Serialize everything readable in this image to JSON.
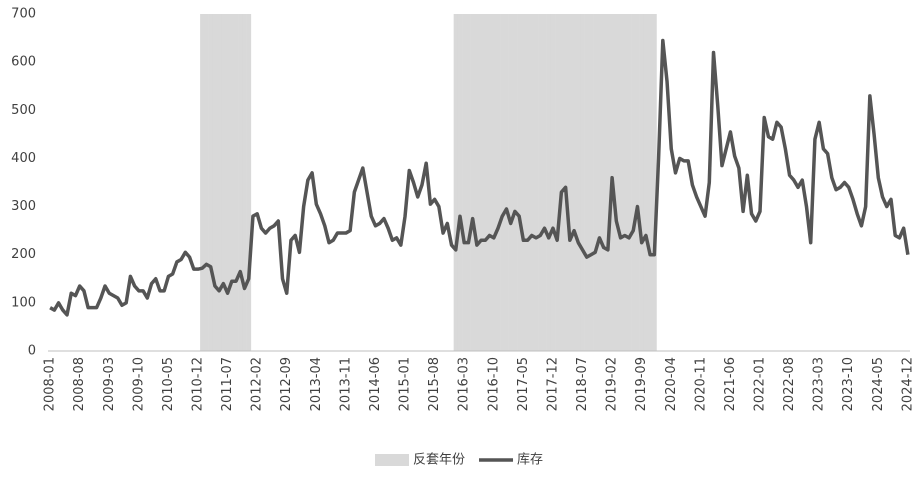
{
  "chart_data": {
    "type": "line",
    "categories": [
      "2008-01",
      null,
      null,
      null,
      null,
      null,
      null,
      "2008-08",
      null,
      null,
      null,
      null,
      null,
      null,
      "2009-03",
      null,
      null,
      null,
      null,
      null,
      null,
      "2009-10",
      null,
      null,
      null,
      null,
      null,
      null,
      "2010-05",
      null,
      null,
      null,
      null,
      null,
      null,
      "2010-12",
      null,
      null,
      null,
      null,
      null,
      null,
      "2011-07",
      null,
      null,
      null,
      null,
      null,
      null,
      "2012-02",
      null,
      null,
      null,
      null,
      null,
      null,
      "2012-09",
      null,
      null,
      null,
      null,
      null,
      null,
      "2013-04",
      null,
      null,
      null,
      null,
      null,
      null,
      "2013-11",
      null,
      null,
      null,
      null,
      null,
      null,
      "2014-06",
      null,
      null,
      null,
      null,
      null,
      null,
      "2015-01",
      null,
      null,
      null,
      null,
      null,
      null,
      "2015-08",
      null,
      null,
      null,
      null,
      null,
      null,
      "2016-03",
      null,
      null,
      null,
      null,
      null,
      null,
      "2016-10",
      null,
      null,
      null,
      null,
      null,
      null,
      "2017-05",
      null,
      null,
      null,
      null,
      null,
      null,
      "2017-12",
      null,
      null,
      null,
      null,
      null,
      null,
      "2018-07",
      null,
      null,
      null,
      null,
      null,
      null,
      "2019-02",
      null,
      null,
      null,
      null,
      null,
      null,
      "2019-09",
      null,
      null,
      null,
      null,
      null,
      null,
      "2020-04",
      null,
      null,
      null,
      null,
      null,
      null,
      "2020-11",
      null,
      null,
      null,
      null,
      null,
      null,
      "2021-06",
      null,
      null,
      null,
      null,
      null,
      null,
      "2022-01",
      null,
      null,
      null,
      null,
      null,
      null,
      "2022-08",
      null,
      null,
      null,
      null,
      null,
      null,
      "2023-03",
      null,
      null,
      null,
      null,
      null,
      null,
      "2023-10",
      null,
      null,
      null,
      null,
      null,
      null,
      "2024-05",
      null,
      null,
      null,
      null,
      null,
      null,
      "2024-12"
    ],
    "series": [
      {
        "name": "反套年份",
        "type": "bar",
        "color": "#d9d9d9",
        "values": [
          null,
          null,
          null,
          null,
          null,
          null,
          null,
          null,
          null,
          null,
          null,
          null,
          null,
          null,
          null,
          null,
          null,
          null,
          null,
          null,
          null,
          null,
          null,
          null,
          null,
          null,
          null,
          null,
          null,
          null,
          null,
          null,
          null,
          null,
          null,
          null,
          700,
          700,
          700,
          700,
          700,
          700,
          700,
          700,
          700,
          700,
          700,
          700,
          null,
          null,
          null,
          null,
          null,
          null,
          null,
          null,
          null,
          null,
          null,
          null,
          null,
          null,
          null,
          null,
          null,
          null,
          null,
          null,
          null,
          null,
          null,
          null,
          null,
          null,
          null,
          null,
          null,
          null,
          null,
          null,
          null,
          null,
          null,
          null,
          null,
          null,
          null,
          null,
          null,
          null,
          null,
          null,
          null,
          null,
          null,
          null,
          700,
          700,
          700,
          700,
          700,
          700,
          700,
          700,
          700,
          700,
          700,
          700,
          700,
          700,
          700,
          700,
          700,
          700,
          700,
          700,
          700,
          700,
          700,
          700,
          700,
          700,
          700,
          700,
          700,
          700,
          700,
          700,
          700,
          700,
          700,
          700,
          700,
          700,
          700,
          700,
          700,
          700,
          700,
          700,
          700,
          700,
          700,
          700,
          null,
          null,
          null,
          null,
          null,
          null,
          null,
          null,
          null,
          null,
          null,
          null,
          null,
          null,
          null,
          null,
          null,
          null,
          null,
          null,
          null,
          null,
          null,
          null,
          null,
          null,
          null,
          null,
          null,
          null,
          null,
          null,
          null,
          null,
          null,
          null,
          null,
          null,
          null,
          null,
          null,
          null,
          null,
          null,
          null,
          null,
          null,
          null,
          null,
          null,
          null,
          null,
          null,
          null,
          null,
          null,
          null,
          null,
          null,
          null
        ]
      },
      {
        "name": "库存",
        "type": "line",
        "color": "#555555",
        "values": [
          90,
          85,
          100,
          85,
          75,
          120,
          115,
          135,
          125,
          90,
          90,
          90,
          110,
          135,
          120,
          115,
          110,
          95,
          100,
          155,
          135,
          125,
          125,
          110,
          140,
          150,
          125,
          125,
          155,
          160,
          185,
          190,
          205,
          195,
          170,
          170,
          172,
          180,
          175,
          135,
          125,
          140,
          120,
          145,
          145,
          165,
          130,
          150,
          280,
          285,
          255,
          245,
          255,
          260,
          270,
          150,
          120,
          230,
          240,
          205,
          300,
          355,
          370,
          305,
          285,
          260,
          225,
          230,
          245,
          245,
          245,
          250,
          330,
          355,
          380,
          330,
          280,
          260,
          265,
          275,
          255,
          230,
          235,
          220,
          280,
          375,
          350,
          320,
          345,
          390,
          305,
          315,
          300,
          245,
          265,
          220,
          210,
          280,
          225,
          225,
          275,
          220,
          230,
          230,
          240,
          235,
          255,
          280,
          295,
          265,
          290,
          280,
          230,
          230,
          240,
          235,
          240,
          255,
          235,
          255,
          230,
          330,
          340,
          230,
          250,
          225,
          210,
          195,
          200,
          205,
          235,
          215,
          210,
          360,
          270,
          235,
          240,
          235,
          250,
          300,
          225,
          240,
          200,
          200,
          400,
          645,
          560,
          420,
          370,
          400,
          395,
          395,
          345,
          320,
          300,
          280,
          350,
          620,
          510,
          385,
          420,
          455,
          405,
          380,
          290,
          365,
          285,
          270,
          290,
          485,
          445,
          440,
          475,
          465,
          420,
          365,
          355,
          340,
          355,
          300,
          225,
          440,
          475,
          420,
          410,
          360,
          335,
          340,
          350,
          340,
          315,
          285,
          260,
          300,
          530,
          450,
          360,
          320,
          300,
          315,
          240,
          235,
          255,
          200
        ]
      }
    ],
    "ylim": [
      0,
      700
    ],
    "yticks": [
      0,
      100,
      200,
      300,
      400,
      500,
      600,
      700
    ],
    "grid": false,
    "legend": "bottom"
  }
}
